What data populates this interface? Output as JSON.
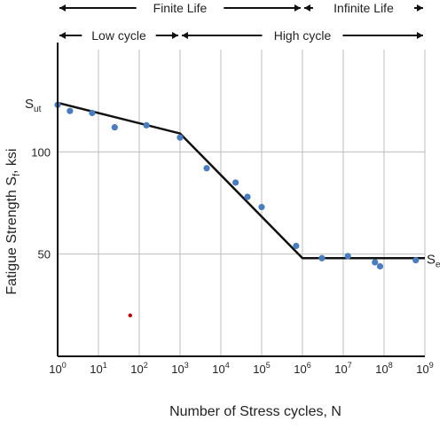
{
  "chart_data": {
    "type": "scatter",
    "xlabel": "Number of Stress cycles, N",
    "ylabel": "Fatigue Strength S",
    "ylabel_sub": "f",
    "ylabel_suffix": ", ksi",
    "x_scale": "log",
    "xlim": [
      1,
      1000000000
    ],
    "ylim": [
      0,
      150
    ],
    "x_ticks": [
      {
        "base": "10",
        "exp": "0",
        "value": 1
      },
      {
        "base": "10",
        "exp": "1",
        "value": 10
      },
      {
        "base": "10",
        "exp": "2",
        "value": 100
      },
      {
        "base": "10",
        "exp": "3",
        "value": 1000
      },
      {
        "base": "10",
        "exp": "4",
        "value": 10000
      },
      {
        "base": "10",
        "exp": "5",
        "value": 100000
      },
      {
        "base": "10",
        "exp": "6",
        "value": 1000000
      },
      {
        "base": "10",
        "exp": "7",
        "value": 10000000
      },
      {
        "base": "10",
        "exp": "8",
        "value": 100000000
      },
      {
        "base": "10",
        "exp": "9",
        "value": 1000000000
      }
    ],
    "y_ticks": [
      {
        "label": "100",
        "value": 100
      },
      {
        "label": "50",
        "value": 50
      }
    ],
    "y_marks": [
      {
        "main": "S",
        "sub": "ut",
        "value": 124,
        "side": "left"
      },
      {
        "main": "S",
        "sub": "e",
        "value": 48,
        "side": "right"
      }
    ],
    "grid": true,
    "points": [
      {
        "x": 1,
        "y": 123
      },
      {
        "x": 2,
        "y": 120
      },
      {
        "x": 7,
        "y": 119
      },
      {
        "x": 25,
        "y": 112
      },
      {
        "x": 150,
        "y": 113
      },
      {
        "x": 1000,
        "y": 107
      },
      {
        "x": 4500,
        "y": 92
      },
      {
        "x": 23000,
        "y": 85
      },
      {
        "x": 45000,
        "y": 78
      },
      {
        "x": 100000,
        "y": 73
      },
      {
        "x": 700000,
        "y": 54
      },
      {
        "x": 3000000,
        "y": 48
      },
      {
        "x": 13000000,
        "y": 49
      },
      {
        "x": 60000000,
        "y": 46
      },
      {
        "x": 80000000,
        "y": 44
      },
      {
        "x": 600000000,
        "y": 47
      }
    ],
    "outlier": {
      "x": 60,
      "y": 20,
      "color": "#c00000"
    },
    "fit_line": [
      {
        "x": 1,
        "y": 124
      },
      {
        "x": 1000,
        "y": 109
      },
      {
        "x": 1000000,
        "y": 48
      },
      {
        "x": 1000000000,
        "y": 48
      }
    ],
    "regions": [
      {
        "label": "Finite Life",
        "from": 1,
        "to": 1000000,
        "row": 0
      },
      {
        "label": "Infinite Life",
        "from": 1000000,
        "to": 1000000000,
        "row": 0
      },
      {
        "label": "Low cycle",
        "from": 1,
        "to": 1000,
        "row": 1
      },
      {
        "label": "High cycle",
        "from": 1000,
        "to": 1000000000,
        "row": 1
      }
    ],
    "colors": {
      "points": "#4a7dc0",
      "line": "#111111",
      "grid": "#bdbdbd",
      "axis": "#111111",
      "outlier": "#c00000"
    }
  }
}
